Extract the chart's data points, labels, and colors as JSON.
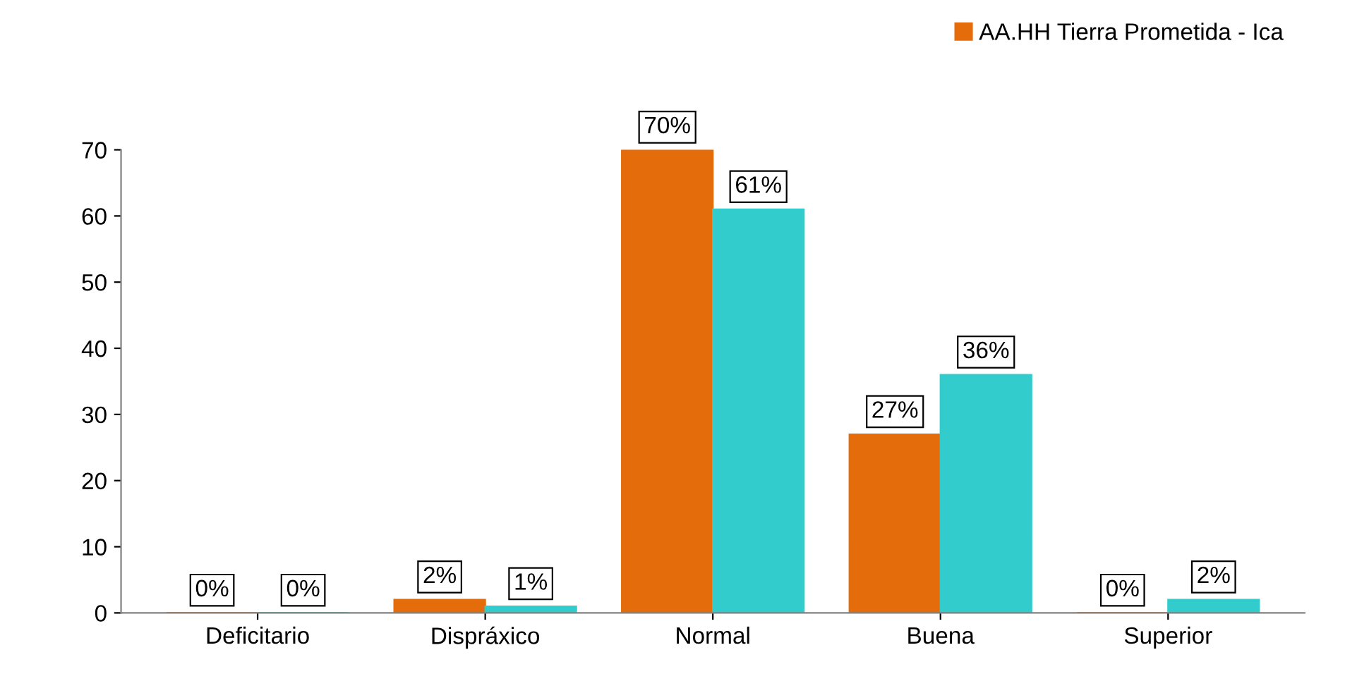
{
  "chart_data": {
    "type": "bar",
    "categories": [
      "Deficitario",
      "Dispráxico",
      "Normal",
      "Buena",
      "Superior"
    ],
    "series": [
      {
        "name": "AA.HH Tierra Prometida - Ica",
        "color": "#e46c0a",
        "values": [
          0,
          2,
          70,
          27,
          0
        ],
        "value_labels": [
          "0%",
          "2%",
          "70%",
          "27%",
          "0%"
        ]
      },
      {
        "color": "#33cccc",
        "values": [
          0,
          1,
          61,
          36,
          2
        ],
        "value_labels": [
          "0%",
          "1%",
          "61%",
          "36%",
          "2%"
        ]
      }
    ],
    "ylim": [
      0,
      70
    ],
    "yticks": [
      0,
      10,
      20,
      30,
      40,
      50,
      60,
      70
    ],
    "grid": false,
    "legend": "top right"
  }
}
